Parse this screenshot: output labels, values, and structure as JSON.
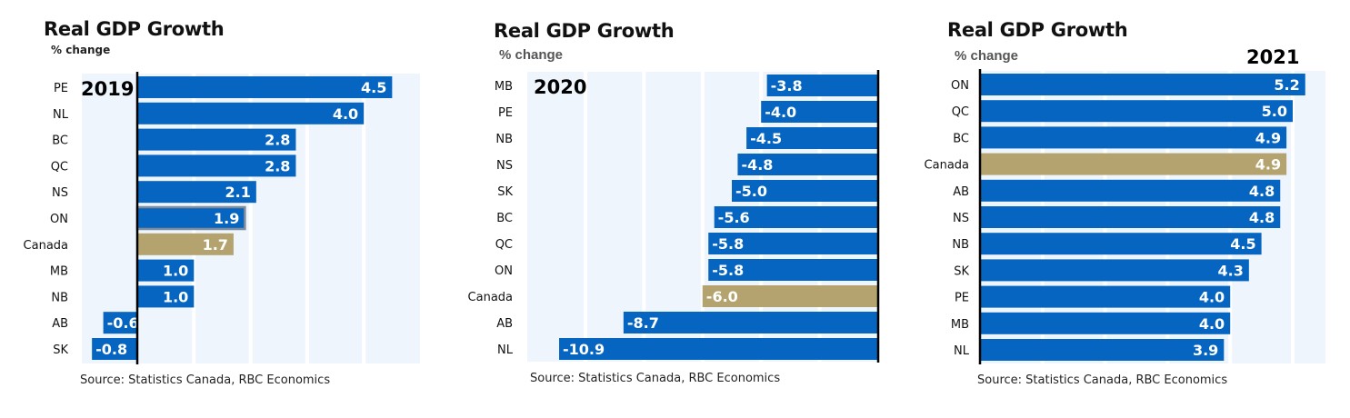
{
  "colors": {
    "bar": "#0565C1",
    "canada_bar": "#B4A36E",
    "highlight_outline": "#7F8C9E",
    "plot_bg": "#EEF5FC",
    "gridline": "#FFFFFF",
    "axis": "#000000",
    "bar_label": "#FFFFFF"
  },
  "chart_data": [
    {
      "type": "bar",
      "orientation": "horizontal",
      "title": "Real GDP Growth",
      "subtitle": "% change",
      "year_label": "2019",
      "source": "Source: Statistics Canada, RBC Economics",
      "categories": [
        "PE",
        "NL",
        "BC",
        "QC",
        "NS",
        "ON",
        "Canada",
        "MB",
        "NB",
        "AB",
        "SK"
      ],
      "values": [
        4.5,
        4.0,
        2.8,
        2.8,
        2.1,
        1.9,
        1.7,
        1.0,
        1.0,
        -0.6,
        -0.8
      ],
      "value_labels": [
        "4.5",
        "4.0",
        "2.8",
        "2.8",
        "2.1",
        "1.9",
        "1.7",
        "1.0",
        "1.0",
        "-0.6",
        "-0.8"
      ],
      "highlight": {
        "Canada": "canada",
        "ON": "outlined"
      },
      "xlim": [
        -1,
        5
      ],
      "gridlines": [
        1,
        2,
        3,
        4
      ],
      "grid": true,
      "xlabel": "",
      "ylabel": ""
    },
    {
      "type": "bar",
      "orientation": "horizontal",
      "title": "Real GDP Growth",
      "subtitle": "% change",
      "year_label": "2020",
      "source": "Source: Statistics Canada, RBC Economics",
      "categories": [
        "MB",
        "PE",
        "NB",
        "NS",
        "SK",
        "BC",
        "QC",
        "ON",
        "Canada",
        "AB",
        "NL"
      ],
      "values": [
        -3.8,
        -4.0,
        -4.5,
        -4.8,
        -5.0,
        -5.6,
        -5.8,
        -5.8,
        -6.0,
        -8.7,
        -10.9
      ],
      "value_labels": [
        "-3.8",
        "-4.0",
        "-4.5",
        "-4.8",
        "-5.0",
        "-5.6",
        "-5.8",
        "-5.8",
        "-6.0",
        "-8.7",
        "-10.9"
      ],
      "highlight": {
        "Canada": "canada"
      },
      "xlim": [
        -12,
        0
      ],
      "gridlines": [
        -10,
        -8,
        -6,
        -4,
        -2
      ],
      "grid": true,
      "xlabel": "",
      "ylabel": ""
    },
    {
      "type": "bar",
      "orientation": "horizontal",
      "title": "Real GDP Growth",
      "subtitle": "% change",
      "year_label": "2021",
      "source": "Source: Statistics Canada, RBC Economics",
      "categories": [
        "ON",
        "QC",
        "BC",
        "Canada",
        "AB",
        "NS",
        "NB",
        "SK",
        "PE",
        "MB",
        "NL"
      ],
      "values": [
        5.2,
        5.0,
        4.9,
        4.9,
        4.8,
        4.8,
        4.5,
        4.3,
        4.0,
        4.0,
        3.9
      ],
      "value_labels": [
        "5.2",
        "5.0",
        "4.9",
        "4.9",
        "4.8",
        "4.8",
        "4.5",
        "4.3",
        "4.0",
        "4.0",
        "3.9"
      ],
      "highlight": {
        "Canada": "canada"
      },
      "xlim": [
        0,
        5.5
      ],
      "gridlines": [
        1,
        2,
        3,
        4,
        5
      ],
      "grid": true,
      "xlabel": "",
      "ylabel": ""
    }
  ]
}
